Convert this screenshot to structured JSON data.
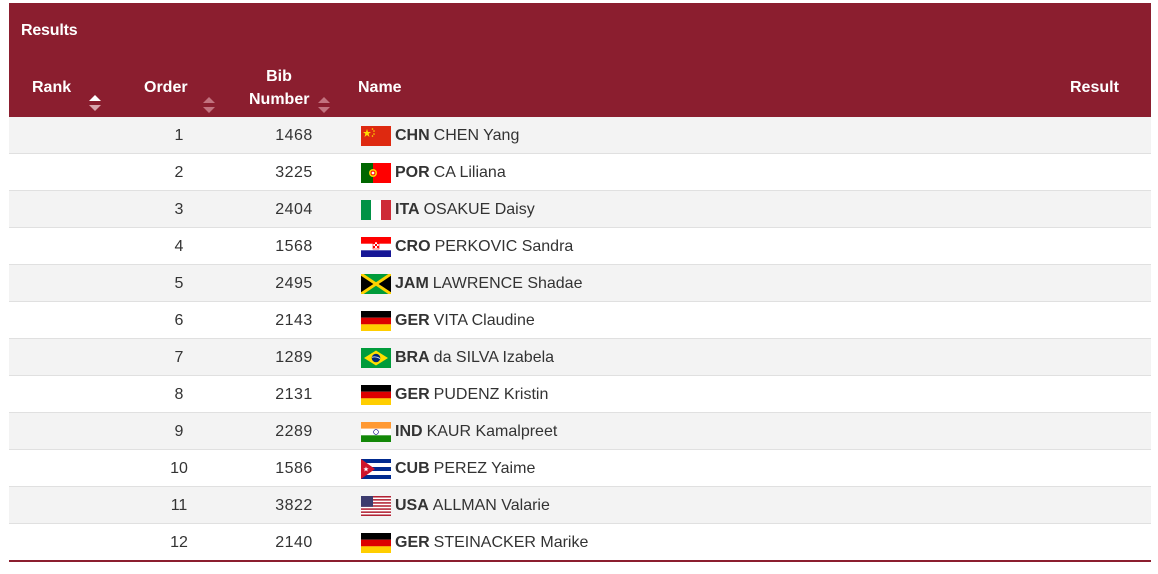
{
  "panel": {
    "title": "Results",
    "accent_color": "#8b1e2f"
  },
  "columns": {
    "rank": "Rank",
    "order": "Order",
    "bib_line1": "Bib",
    "bib_line2": "Number",
    "name": "Name",
    "result": "Result"
  },
  "sort_icons": {
    "rank": "sort-ascending-icon",
    "order": "sort-icon",
    "bib": "sort-icon"
  },
  "rows": [
    {
      "order": "1",
      "bib": "1468",
      "flag": "flag-china-icon",
      "noc": "CHN",
      "athlete": "CHEN Yang"
    },
    {
      "order": "2",
      "bib": "3225",
      "flag": "flag-portugal-icon",
      "noc": "POR",
      "athlete": "CA Liliana"
    },
    {
      "order": "3",
      "bib": "2404",
      "flag": "flag-italy-icon",
      "noc": "ITA",
      "athlete": "OSAKUE Daisy"
    },
    {
      "order": "4",
      "bib": "1568",
      "flag": "flag-croatia-icon",
      "noc": "CRO",
      "athlete": "PERKOVIC Sandra"
    },
    {
      "order": "5",
      "bib": "2495",
      "flag": "flag-jamaica-icon",
      "noc": "JAM",
      "athlete": "LAWRENCE Shadae"
    },
    {
      "order": "6",
      "bib": "2143",
      "flag": "flag-germany-icon",
      "noc": "GER",
      "athlete": "VITA Claudine"
    },
    {
      "order": "7",
      "bib": "1289",
      "flag": "flag-brazil-icon",
      "noc": "BRA",
      "athlete": "da SILVA Izabela"
    },
    {
      "order": "8",
      "bib": "2131",
      "flag": "flag-germany-icon",
      "noc": "GER",
      "athlete": "PUDENZ Kristin"
    },
    {
      "order": "9",
      "bib": "2289",
      "flag": "flag-india-icon",
      "noc": "IND",
      "athlete": "KAUR Kamalpreet"
    },
    {
      "order": "10",
      "bib": "1586",
      "flag": "flag-cuba-icon",
      "noc": "CUB",
      "athlete": "PEREZ Yaime"
    },
    {
      "order": "11",
      "bib": "3822",
      "flag": "flag-usa-icon",
      "noc": "USA",
      "athlete": "ALLMAN Valarie"
    },
    {
      "order": "12",
      "bib": "2140",
      "flag": "flag-germany-icon",
      "noc": "GER",
      "athlete": "STEINACKER Marike"
    }
  ]
}
